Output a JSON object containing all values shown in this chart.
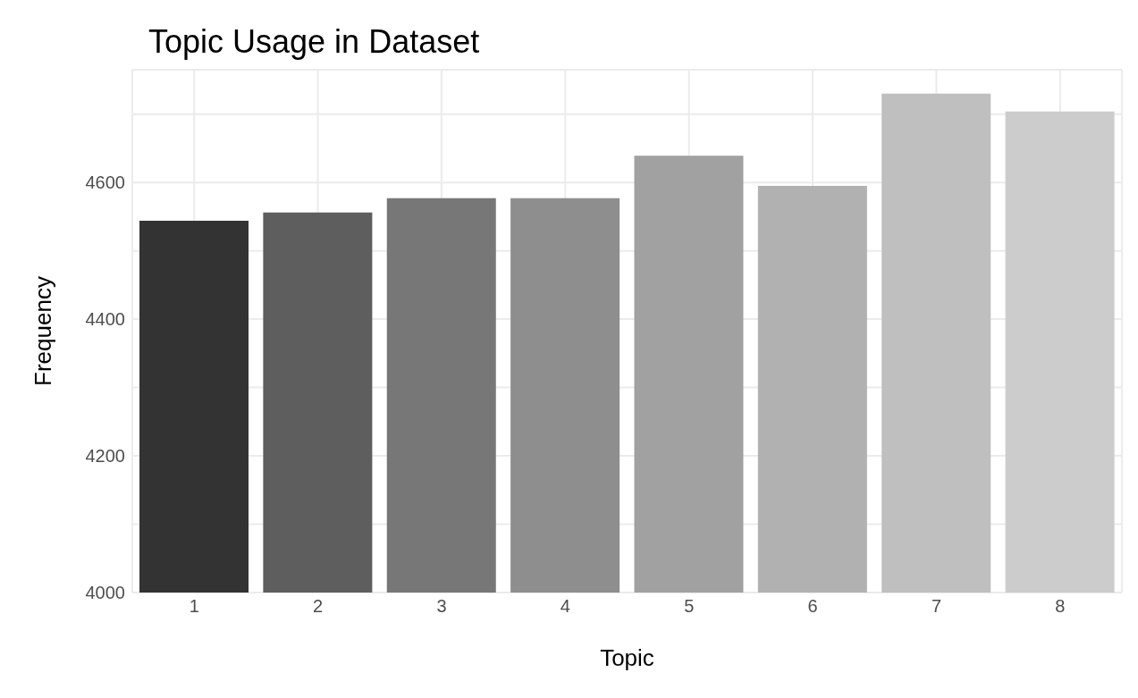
{
  "chart_data": {
    "type": "bar",
    "title": "Topic Usage in Dataset",
    "xlabel": "Topic",
    "ylabel": "Frequency",
    "categories": [
      "1",
      "2",
      "3",
      "4",
      "5",
      "6",
      "7",
      "8"
    ],
    "values": [
      4544,
      4556,
      4577,
      4577,
      4639,
      4595,
      4730,
      4704
    ],
    "colors": [
      "#333333",
      "#5e5e5e",
      "#777777",
      "#8e8e8e",
      "#a1a1a1",
      "#b1b1b1",
      "#bfbfbf",
      "#cccccc"
    ],
    "ylim": [
      4000,
      4765
    ],
    "yticks": [
      4000,
      {
        "value": 4100,
        "label": null
      },
      4200,
      {
        "value": 4300,
        "label": null
      },
      4400,
      {
        "value": 4500,
        "label": null
      },
      4600,
      {
        "value": 4700,
        "label": null
      }
    ],
    "grid": true
  }
}
